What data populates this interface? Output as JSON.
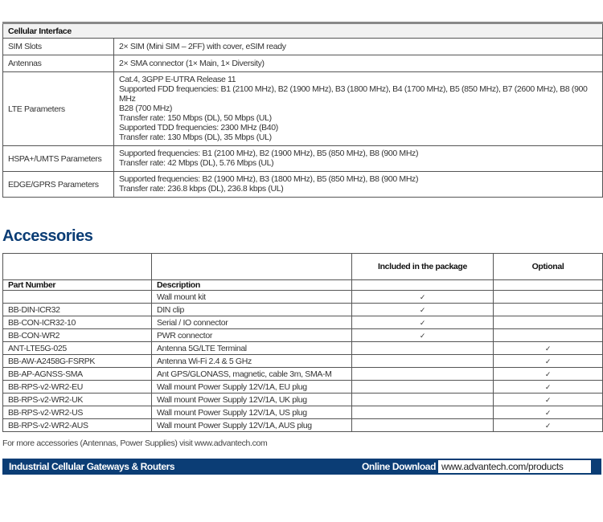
{
  "cellular": {
    "title": "Cellular Interface",
    "rows": [
      {
        "label": "SIM Slots",
        "lines": [
          "2× SIM (Mini SIM – 2FF) with cover, eSIM ready"
        ]
      },
      {
        "label": "Antennas",
        "lines": [
          "2× SMA connector (1× Main, 1× Diversity)"
        ]
      },
      {
        "label": "LTE Parameters",
        "lines": [
          "Cat.4, 3GPP E-UTRA Release 11",
          "Supported FDD frequencies: B1 (2100 MHz), B2 (1900 MHz), B3 (1800 MHz), B4 (1700 MHz), B5 (850 MHz), B7 (2600 MHz), B8 (900 MHz",
          "B28 (700 MHz)",
          "Transfer rate: 150 Mbps (DL), 50 Mbps (UL)",
          "Supported TDD frequencies: 2300 MHz (B40)",
          "Transfer rate: 130 Mbps (DL), 35 Mbps (UL)"
        ]
      },
      {
        "label": "HSPA+/UMTS Parameters",
        "lines": [
          "Supported frequencies: B1 (2100 MHz), B2 (1900 MHz), B5 (850 MHz), B8 (900 MHz)",
          "Transfer rate: 42 Mbps (DL), 5.76 Mbps (UL)"
        ]
      },
      {
        "label": "EDGE/GPRS Parameters",
        "lines": [
          "Supported frequencies: B2 (1900 MHz), B3 (1800 MHz), B5 (850 MHz), B8 (900 MHz)",
          "Transfer rate: 236.8 kbps (DL), 236.8 kbps (UL)"
        ]
      }
    ]
  },
  "accessories": {
    "title": "Accessories",
    "headers": {
      "included": "Included in the package",
      "optional": "Optional",
      "part": "Part Number",
      "description": "Description"
    },
    "check": "✓",
    "rows": [
      {
        "part": "",
        "description": "Wall mount kit",
        "included": true,
        "optional": false
      },
      {
        "part": "BB-DIN-ICR32",
        "description": "DIN clip",
        "included": true,
        "optional": false
      },
      {
        "part": "BB-CON-ICR32-10",
        "description": "Serial / IO connector",
        "included": true,
        "optional": false
      },
      {
        "part": "BB-CON-WR2",
        "description": "PWR connector",
        "included": true,
        "optional": false
      },
      {
        "part": "ANT-LTE5G-025",
        "description": "Antenna 5G/LTE Terminal",
        "included": false,
        "optional": true
      },
      {
        "part": "BB-AW-A2458G-FSRPK",
        "description": "Antenna Wi-Fi 2.4 & 5 GHz",
        "included": false,
        "optional": true
      },
      {
        "part": "BB-AP-AGNSS-SMA",
        "description": "Ant GPS/GLONASS, magnetic, cable 3m, SMA-M",
        "included": false,
        "optional": true
      },
      {
        "part": "BB-RPS-v2-WR2-EU",
        "description": "Wall mount Power Supply 12V/1A, EU plug",
        "included": false,
        "optional": true
      },
      {
        "part": "BB-RPS-v2-WR2-UK",
        "description": "Wall mount Power Supply 12V/1A, UK plug",
        "included": false,
        "optional": true
      },
      {
        "part": "BB-RPS-v2-WR2-US",
        "description": "Wall mount Power Supply 12V/1A, US plug",
        "included": false,
        "optional": true
      },
      {
        "part": "BB-RPS-v2-WR2-AUS",
        "description": "Wall mount Power Supply 12V/1A, AUS plug",
        "included": false,
        "optional": true
      }
    ],
    "footnote": "For more accessories (Antennas, Power Supplies) visit www.advantech.com"
  },
  "footer": {
    "left": "Industrial Cellular Gateways & Routers",
    "download_label": "Online Download",
    "download_url": "www.advantech.com/products",
    "brand_color": "#0b3d75"
  }
}
